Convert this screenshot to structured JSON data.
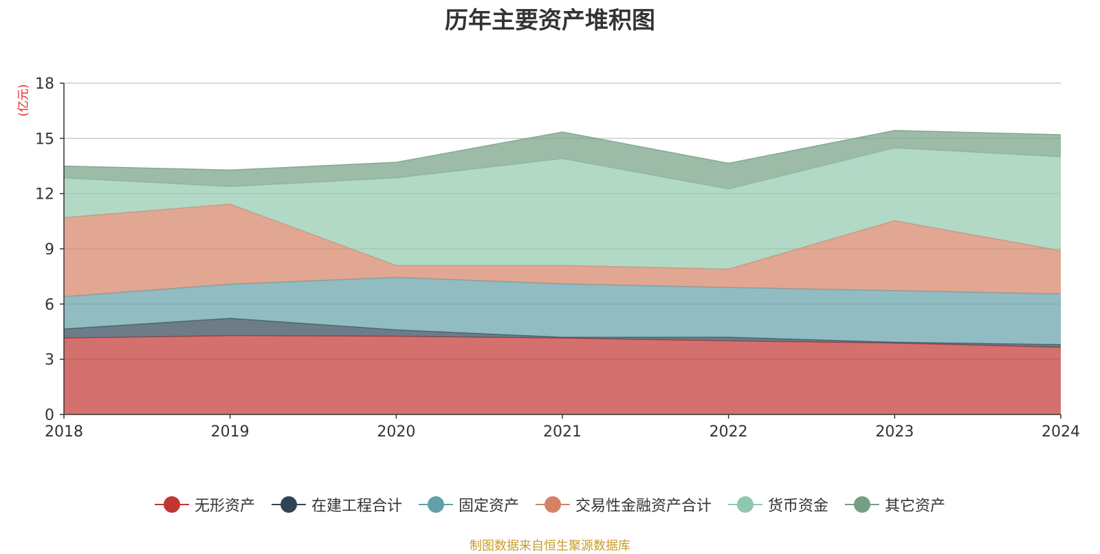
{
  "chart_data": {
    "type": "area",
    "stacked": true,
    "title": "历年主要资产堆积图",
    "unit_label": "(亿元)",
    "x": [
      "2018",
      "2019",
      "2020",
      "2021",
      "2022",
      "2023",
      "2024"
    ],
    "ylim": [
      0,
      18
    ],
    "yticks": [
      0,
      3,
      6,
      9,
      12,
      15,
      18
    ],
    "grid": true,
    "legend_position": "bottom",
    "series": [
      {
        "name": "无形资产",
        "color": "#c23531",
        "values": [
          4.15,
          4.28,
          4.25,
          4.15,
          4.0,
          3.88,
          3.65
        ]
      },
      {
        "name": "在建工程合计",
        "color": "#2f4554",
        "values": [
          0.5,
          0.95,
          0.35,
          0.05,
          0.2,
          0.05,
          0.15
        ]
      },
      {
        "name": "固定资产",
        "color": "#61a0a8",
        "values": [
          1.75,
          1.85,
          2.85,
          2.9,
          2.7,
          2.8,
          2.75
        ]
      },
      {
        "name": "交易性金融资产合计",
        "color": "#d48265",
        "values": [
          4.3,
          4.35,
          0.65,
          1.0,
          1.0,
          3.8,
          2.35
        ]
      },
      {
        "name": "货币资金",
        "color": "#91c7ae",
        "values": [
          2.15,
          0.95,
          4.75,
          5.8,
          4.35,
          3.95,
          5.1
        ]
      },
      {
        "name": "其它资产",
        "color": "#749f83",
        "values": [
          0.65,
          0.9,
          0.85,
          1.45,
          1.4,
          0.95,
          1.2
        ]
      }
    ]
  },
  "source_text": "制图数据来自恒生聚源数据库"
}
